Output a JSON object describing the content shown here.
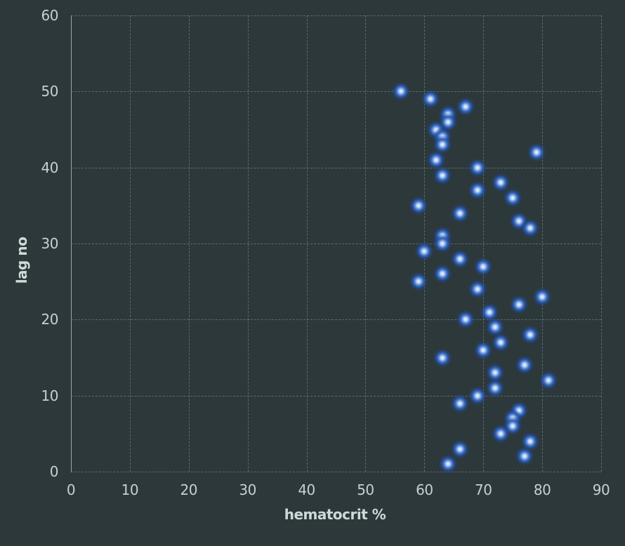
{
  "chart_data": {
    "type": "scatter",
    "title": "",
    "xlabel": "hematocrit %",
    "ylabel": "lag no",
    "xlim": [
      0,
      90
    ],
    "ylim": [
      0,
      60
    ],
    "xticks": [
      0,
      10,
      20,
      30,
      40,
      50,
      60,
      70,
      80,
      90
    ],
    "yticks": [
      0,
      10,
      20,
      30,
      40,
      50,
      60
    ],
    "grid": true,
    "legend": false,
    "background": "#2d383b",
    "gridline_color": "rgba(168,188,188,0.38)",
    "axis_line_color": "#95a7a7",
    "tick_label_color": "#c5d1d1",
    "marker_core_color": "#e8f1fd",
    "marker_glow_color": "#2d5fb6",
    "points": [
      [
        56,
        50
      ],
      [
        61,
        49
      ],
      [
        67,
        48
      ],
      [
        64,
        47
      ],
      [
        64,
        46
      ],
      [
        62,
        45
      ],
      [
        63,
        44
      ],
      [
        63,
        43
      ],
      [
        79,
        42
      ],
      [
        62,
        41
      ],
      [
        69,
        40
      ],
      [
        63,
        39
      ],
      [
        73,
        38
      ],
      [
        69,
        37
      ],
      [
        75,
        36
      ],
      [
        59,
        35
      ],
      [
        66,
        34
      ],
      [
        76,
        33
      ],
      [
        78,
        32
      ],
      [
        63,
        31
      ],
      [
        63,
        30
      ],
      [
        60,
        29
      ],
      [
        66,
        28
      ],
      [
        70,
        27
      ],
      [
        63,
        26
      ],
      [
        59,
        25
      ],
      [
        69,
        24
      ],
      [
        80,
        23
      ],
      [
        76,
        22
      ],
      [
        71,
        21
      ],
      [
        67,
        20
      ],
      [
        72,
        19
      ],
      [
        78,
        18
      ],
      [
        73,
        17
      ],
      [
        70,
        16
      ],
      [
        63,
        15
      ],
      [
        77,
        14
      ],
      [
        72,
        13
      ],
      [
        81,
        12
      ],
      [
        72,
        11
      ],
      [
        69,
        10
      ],
      [
        66,
        9
      ],
      [
        76,
        8
      ],
      [
        75,
        7
      ],
      [
        75,
        6
      ],
      [
        73,
        5
      ],
      [
        78,
        4
      ],
      [
        66,
        3
      ],
      [
        77,
        2
      ],
      [
        64,
        1
      ]
    ]
  }
}
